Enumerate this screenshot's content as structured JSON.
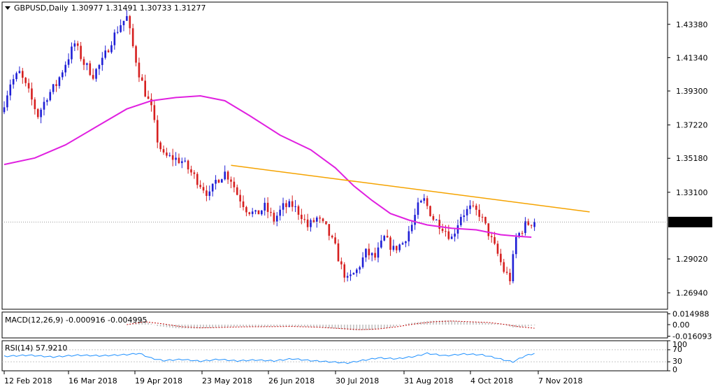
{
  "header": {
    "symbol": "GBPUSD,Daily",
    "ohlc": "1.30977 1.31491 1.30733 1.31277"
  },
  "colors": {
    "bull": "#1f1fd6",
    "bear": "#d61f1f",
    "ma": "#e020e0",
    "trendline": "#f5a300",
    "macd_hist": "#c0c0c0",
    "macd_signal": "#c00000",
    "rsi": "#1e90ff",
    "price_label_bg": "#000000",
    "price_label_text": "#ffffff"
  },
  "chart_data": [
    {
      "type": "candlestick",
      "name": "price",
      "ylim": [
        1.2594,
        1.4474
      ],
      "y_ticks": [
        "1.43380",
        "1.41340",
        "1.39300",
        "1.37220",
        "1.35180",
        "1.33100",
        "1.29020",
        "1.26940"
      ],
      "x_ticks": [
        "12 Feb 2018",
        "16 Mar 2018",
        "19 Apr 2018",
        "23 May 2018",
        "26 Jun 2018",
        "30 Jul 2018",
        "31 Aug 2018",
        "4 Oct 2018",
        "7 Nov 2018"
      ],
      "current_price": "1.31277",
      "path_points": [
        [
          0,
          1.38
        ],
        [
          3,
          1.398
        ],
        [
          6,
          1.404
        ],
        [
          9,
          1.392
        ],
        [
          12,
          1.378
        ],
        [
          15,
          1.39
        ],
        [
          18,
          1.397
        ],
        [
          21,
          1.41
        ],
        [
          24,
          1.422
        ],
        [
          27,
          1.41
        ],
        [
          30,
          1.403
        ],
        [
          33,
          1.411
        ],
        [
          36,
          1.424
        ],
        [
          39,
          1.434
        ],
        [
          41,
          1.438
        ],
        [
          43,
          1.42
        ],
        [
          45,
          1.404
        ],
        [
          47,
          1.392
        ],
        [
          49,
          1.382
        ],
        [
          51,
          1.363
        ],
        [
          53,
          1.353
        ],
        [
          56,
          1.352
        ],
        [
          59,
          1.35
        ],
        [
          62,
          1.343
        ],
        [
          65,
          1.336
        ],
        [
          68,
          1.329
        ],
        [
          70,
          1.338
        ],
        [
          73,
          1.343
        ],
        [
          75,
          1.339
        ],
        [
          77,
          1.33
        ],
        [
          80,
          1.321
        ],
        [
          83,
          1.317
        ],
        [
          86,
          1.322
        ],
        [
          89,
          1.314
        ],
        [
          92,
          1.322
        ],
        [
          95,
          1.323
        ],
        [
          98,
          1.317
        ],
        [
          100,
          1.31
        ],
        [
          103,
          1.315
        ],
        [
          106,
          1.309
        ],
        [
          109,
          1.297
        ],
        [
          111,
          1.285
        ],
        [
          113,
          1.277
        ],
        [
          116,
          1.283
        ],
        [
          119,
          1.294
        ],
        [
          122,
          1.291
        ],
        [
          125,
          1.303
        ],
        [
          128,
          1.296
        ],
        [
          131,
          1.3
        ],
        [
          134,
          1.311
        ],
        [
          136,
          1.322
        ],
        [
          138,
          1.326
        ],
        [
          141,
          1.315
        ],
        [
          144,
          1.31
        ],
        [
          147,
          1.303
        ],
        [
          150,
          1.317
        ],
        [
          153,
          1.321
        ],
        [
          156,
          1.318
        ],
        [
          159,
          1.306
        ],
        [
          162,
          1.293
        ],
        [
          164,
          1.283
        ],
        [
          166,
          1.278
        ],
        [
          168,
          1.303
        ],
        [
          171,
          1.311
        ],
        [
          173,
          1.3128
        ]
      ],
      "last_candle": {
        "open": 1.30977,
        "high": 1.31491,
        "low": 1.30733,
        "close": 1.31277
      },
      "moving_average": [
        [
          0,
          1.348
        ],
        [
          10,
          1.352
        ],
        [
          20,
          1.36
        ],
        [
          30,
          1.371
        ],
        [
          40,
          1.382
        ],
        [
          48,
          1.387
        ],
        [
          56,
          1.389
        ],
        [
          64,
          1.39
        ],
        [
          72,
          1.387
        ],
        [
          80,
          1.378
        ],
        [
          90,
          1.366
        ],
        [
          100,
          1.357
        ],
        [
          108,
          1.346
        ],
        [
          114,
          1.335
        ],
        [
          120,
          1.326
        ],
        [
          126,
          1.318
        ],
        [
          132,
          1.314
        ],
        [
          138,
          1.311
        ],
        [
          146,
          1.309
        ],
        [
          154,
          1.308
        ],
        [
          162,
          1.305
        ],
        [
          168,
          1.304
        ],
        [
          172,
          1.3035
        ]
      ],
      "trendline": [
        [
          74,
          1.3475
        ],
        [
          191,
          1.319
        ]
      ]
    },
    {
      "type": "bar",
      "name": "MACD",
      "label": "MACD(12,26,9) -0.000916 -0.004995",
      "ylim": [
        -0.0185,
        0.0175
      ],
      "y_ticks": [
        "0.014988",
        "0.00",
        "-0.016093"
      ],
      "histogram_points": [
        [
          0,
          0.0
        ],
        [
          40,
          0.0
        ],
        [
          45,
          0.006
        ],
        [
          50,
          -0.002
        ],
        [
          56,
          -0.005
        ],
        [
          62,
          -0.0055
        ],
        [
          68,
          -0.0045
        ],
        [
          76,
          -0.0025
        ],
        [
          84,
          -0.003
        ],
        [
          92,
          -0.002
        ],
        [
          100,
          -0.003
        ],
        [
          108,
          -0.0055
        ],
        [
          114,
          -0.008
        ],
        [
          120,
          -0.0075
        ],
        [
          126,
          -0.004
        ],
        [
          132,
          0.002
        ],
        [
          138,
          0.005
        ],
        [
          144,
          0.006
        ],
        [
          150,
          0.004
        ],
        [
          156,
          0.003
        ],
        [
          162,
          0.001
        ],
        [
          166,
          -0.004
        ],
        [
          170,
          -0.003
        ],
        [
          173,
          -0.0009
        ]
      ],
      "signal_points": [
        [
          40,
          0.0
        ],
        [
          46,
          0.004
        ],
        [
          52,
          0.001
        ],
        [
          58,
          -0.003
        ],
        [
          64,
          -0.0045
        ],
        [
          70,
          -0.004
        ],
        [
          78,
          -0.003
        ],
        [
          86,
          -0.0028
        ],
        [
          94,
          -0.0025
        ],
        [
          102,
          -0.0035
        ],
        [
          110,
          -0.0055
        ],
        [
          116,
          -0.007
        ],
        [
          122,
          -0.006
        ],
        [
          128,
          -0.003
        ],
        [
          134,
          0.001
        ],
        [
          140,
          0.004
        ],
        [
          146,
          0.005
        ],
        [
          152,
          0.004
        ],
        [
          158,
          0.003
        ],
        [
          164,
          0.0
        ],
        [
          168,
          -0.003
        ],
        [
          173,
          -0.005
        ]
      ]
    },
    {
      "type": "line",
      "name": "RSI",
      "label": "RSI(14) 57.9210",
      "ylim": [
        0,
        100
      ],
      "y_ticks": [
        "100",
        "70",
        "30",
        "0"
      ],
      "points": [
        [
          0,
          48
        ],
        [
          8,
          52
        ],
        [
          16,
          46
        ],
        [
          24,
          52
        ],
        [
          32,
          50
        ],
        [
          40,
          54
        ],
        [
          44,
          58
        ],
        [
          48,
          42
        ],
        [
          52,
          34
        ],
        [
          58,
          38
        ],
        [
          64,
          32
        ],
        [
          70,
          38
        ],
        [
          76,
          33
        ],
        [
          82,
          36
        ],
        [
          88,
          33
        ],
        [
          94,
          40
        ],
        [
          100,
          34
        ],
        [
          106,
          30
        ],
        [
          112,
          26
        ],
        [
          116,
          33
        ],
        [
          122,
          43
        ],
        [
          128,
          40
        ],
        [
          134,
          48
        ],
        [
          138,
          58
        ],
        [
          144,
          50
        ],
        [
          150,
          56
        ],
        [
          156,
          53
        ],
        [
          160,
          44
        ],
        [
          164,
          34
        ],
        [
          166,
          30
        ],
        [
          170,
          50
        ],
        [
          173,
          58
        ]
      ]
    }
  ]
}
